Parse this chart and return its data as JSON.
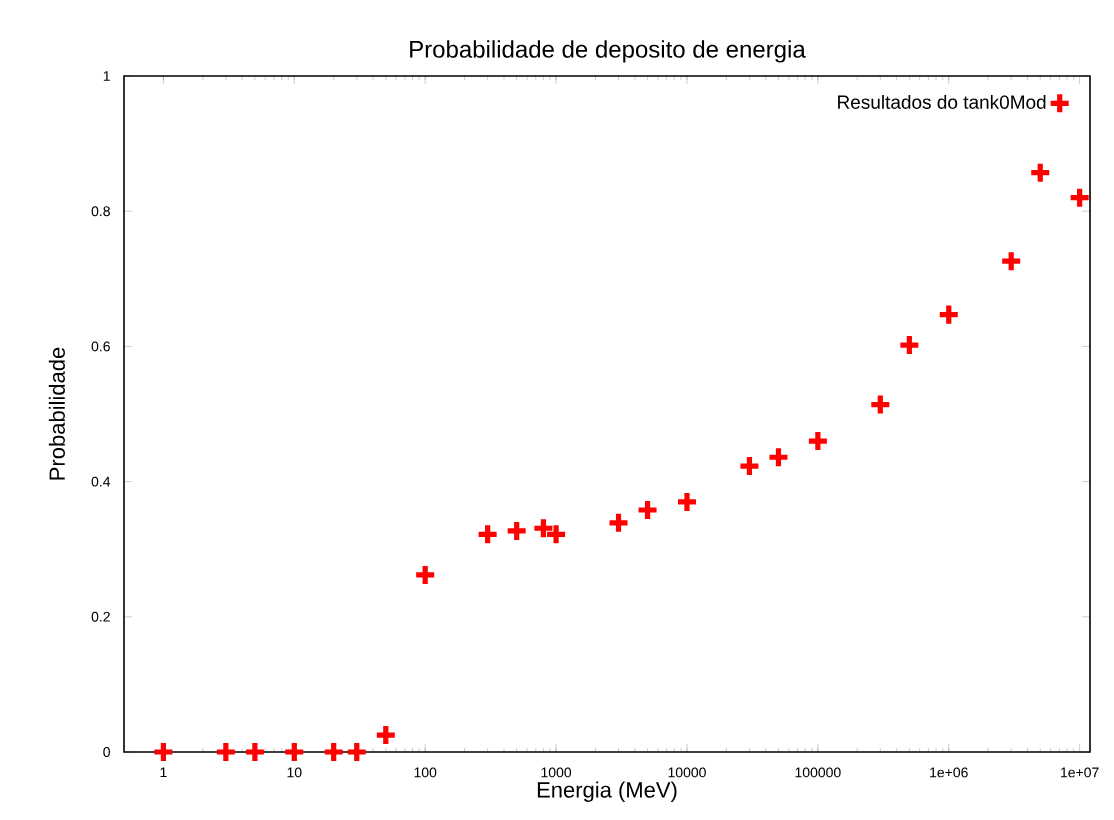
{
  "chart_data": {
    "type": "scatter",
    "title": "Probabilidade de deposito de energia",
    "xlabel": "Energia (MeV)",
    "ylabel": "Probabilidade",
    "log": "x",
    "xlim": [
      0.5,
      12000000
    ],
    "ylim": [
      0,
      1
    ],
    "xticks": [
      1,
      10,
      100,
      1000,
      10000,
      100000,
      {
        "value": 1000000,
        "label": "1e+06"
      },
      {
        "value": 10000000,
        "label": "1e+07"
      }
    ],
    "yticks": [
      0,
      0.2,
      0.4,
      0.6,
      0.8,
      1
    ],
    "grid": false,
    "legend": "top right",
    "marker": "cross",
    "series": [
      {
        "name": "Resultados do tank0Mod",
        "color": "#ff0000",
        "x": [
          1,
          3,
          5,
          10,
          20,
          30,
          50,
          100,
          300,
          500,
          800,
          1000,
          3000,
          5000,
          10000,
          30000,
          50000,
          100000,
          300000,
          500000,
          1000000,
          3000000,
          5000000,
          10000000
        ],
        "values": [
          0,
          0,
          0,
          0,
          0,
          0,
          0.025,
          0.262,
          0.322,
          0.327,
          0.331,
          0.322,
          0.339,
          0.358,
          0.37,
          0.423,
          0.436,
          0.46,
          0.514,
          0.602,
          0.647,
          0.726,
          0.857,
          0.82
        ]
      }
    ]
  }
}
